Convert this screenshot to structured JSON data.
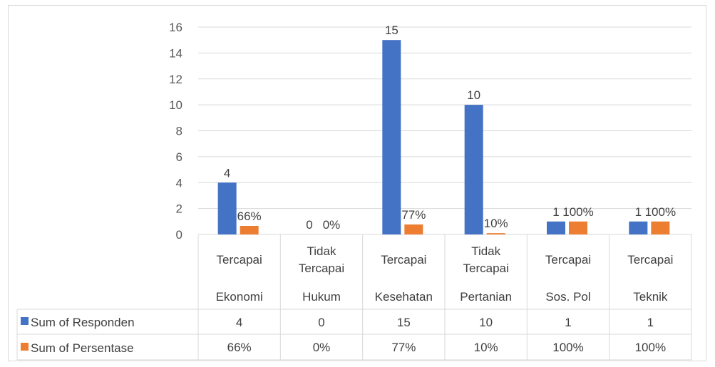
{
  "chart_data": {
    "type": "bar",
    "ylim": [
      0,
      16
    ],
    "yticks": [
      0,
      2,
      4,
      6,
      8,
      10,
      12,
      14,
      16
    ],
    "grid": true,
    "categories": [
      {
        "top": [
          "Tercapai"
        ],
        "bottom": "Ekonomi"
      },
      {
        "top": [
          "Tidak",
          "Tercapai"
        ],
        "bottom": "Hukum"
      },
      {
        "top": [
          "Tercapai"
        ],
        "bottom": "Kesehatan"
      },
      {
        "top": [
          "Tidak",
          "Tercapai"
        ],
        "bottom": "Pertanian"
      },
      {
        "top": [
          "Tercapai"
        ],
        "bottom": "Sos. Pol"
      },
      {
        "top": [
          "Tercapai"
        ],
        "bottom": "Teknik"
      }
    ],
    "series": [
      {
        "name": "Sum of  Responden",
        "color": "#4472c4",
        "values": [
          4,
          0,
          15,
          10,
          1,
          1
        ],
        "data_labels": [
          "4",
          "0",
          "15",
          "10",
          "1",
          "1"
        ],
        "table_values": [
          "4",
          "0",
          "15",
          "10",
          "1",
          "1"
        ]
      },
      {
        "name": "Sum of Persentase",
        "color": "#ed7d31",
        "values": [
          0.66,
          0,
          0.77,
          0.1,
          1,
          1
        ],
        "data_labels": [
          "66%",
          "0%",
          "77%",
          "10%",
          "100%",
          "100%"
        ],
        "table_values": [
          "66%",
          "0%",
          "77%",
          "10%",
          "100%",
          "100%"
        ]
      }
    ],
    "data_table": true
  }
}
